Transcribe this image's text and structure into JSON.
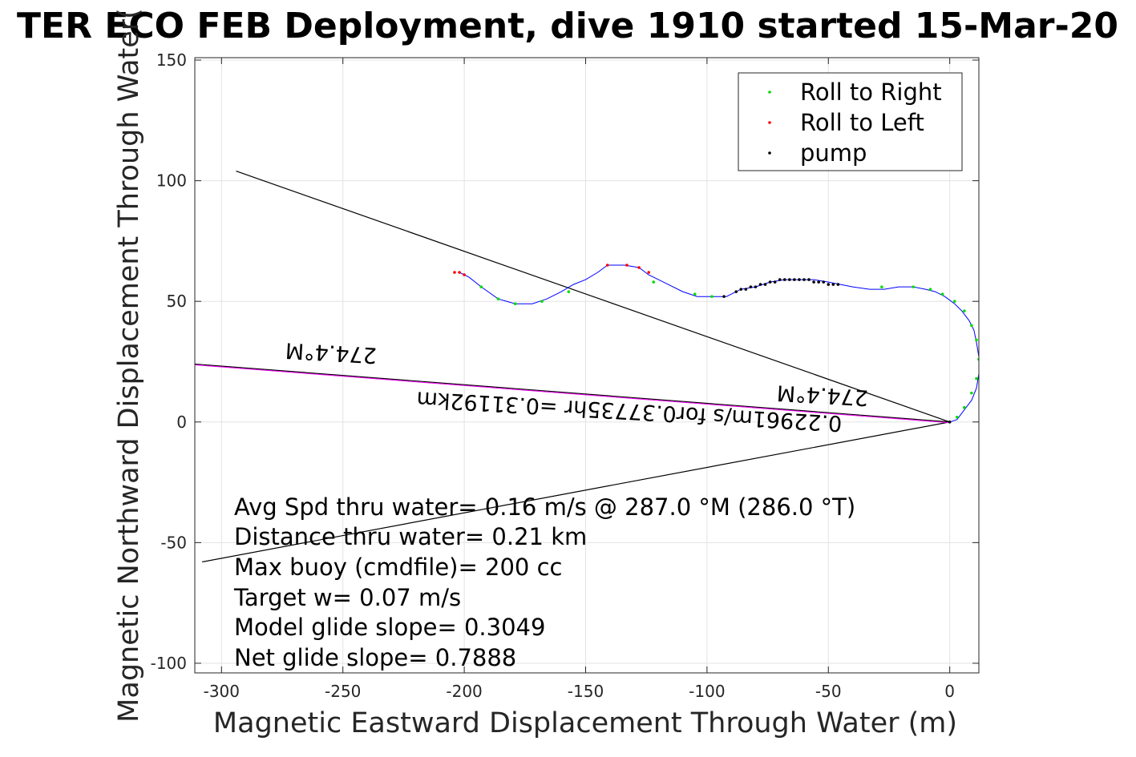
{
  "chart_data": {
    "type": "scatter",
    "title": "TER ECO FEB Deployment, dive 1910 started 15-Mar-20",
    "xlabel": "Magnetic Eastward Displacement Through Water (m)",
    "ylabel": "Magnetic Northward Displacement Through Water(",
    "xlim": [
      -311,
      12
    ],
    "ylim": [
      -104,
      151
    ],
    "xticks": [
      -300,
      -250,
      -200,
      -150,
      -100,
      -50,
      0
    ],
    "yticks": [
      -100,
      -50,
      0,
      50,
      100,
      150
    ],
    "grid": true,
    "legend_position": "top-right",
    "colors": {
      "track": "#0000ff",
      "roll_right": "#00dd00",
      "roll_left": "#ff0000",
      "pump": "#000000",
      "heading_line": "#ff00ff",
      "reference_lines": "#000000"
    },
    "series": [
      {
        "name": "Roll to Right",
        "color": "#00dd00",
        "x": [
          -193,
          -186,
          -179,
          -168,
          -157,
          -122,
          -105,
          -98,
          -28,
          -15,
          -8,
          -3,
          2,
          6,
          9,
          11,
          12,
          11,
          9,
          6,
          3
        ],
        "y": [
          56,
          51,
          49,
          50,
          54,
          58,
          53,
          52,
          56,
          56,
          55,
          53,
          50,
          46,
          40,
          34,
          26,
          18,
          12,
          6,
          2
        ]
      },
      {
        "name": "Roll to Left",
        "color": "#ff0000",
        "x": [
          -204,
          -202,
          -200,
          -141,
          -133,
          -128,
          -124
        ],
        "y": [
          62,
          62,
          61,
          65,
          65,
          64,
          62
        ]
      },
      {
        "name": "pump",
        "color": "#000000",
        "x": [
          -93,
          -88,
          -86,
          -84,
          -82,
          -80,
          -78,
          -76,
          -74,
          -72,
          -70,
          -68,
          -66,
          -64,
          -62,
          -60,
          -58,
          -56,
          -54,
          -52,
          -50,
          -48,
          -46,
          0
        ],
        "y": [
          52,
          54,
          55,
          55,
          56,
          56,
          57,
          57,
          58,
          58,
          59,
          59,
          59,
          59,
          59,
          59,
          59,
          58,
          58,
          58,
          57,
          57,
          57,
          0
        ]
      }
    ],
    "track": {
      "x": [
        -202,
        -198,
        -193,
        -186,
        -179,
        -172,
        -166,
        -160,
        -155,
        -150,
        -145,
        -141,
        -134,
        -128,
        -124,
        -118,
        -110,
        -104,
        -98,
        -92,
        -86,
        -80,
        -74,
        -68,
        -62,
        -56,
        -50,
        -45,
        -40,
        -33,
        -27,
        -21,
        -15,
        -10,
        -6,
        -2,
        2,
        5,
        8,
        10,
        11,
        12,
        12,
        11,
        9,
        6,
        3,
        0
      ],
      "y": [
        62,
        60,
        56,
        51,
        49,
        49,
        51,
        54,
        57,
        59,
        62,
        65,
        65,
        64,
        61,
        58,
        54,
        52,
        52,
        52,
        55,
        56,
        58,
        59,
        59,
        59,
        58,
        57,
        56,
        55,
        55,
        56,
        56,
        55,
        54,
        52,
        49,
        46,
        42,
        38,
        33,
        27,
        20,
        14,
        9,
        5,
        1,
        0
      ]
    },
    "reference_lines": [
      {
        "x": [
          0,
          -294
        ],
        "y": [
          0,
          104
        ]
      },
      {
        "x": [
          0,
          -308
        ],
        "y": [
          0,
          -58
        ]
      },
      {
        "x": [
          0,
          -311
        ],
        "y": [
          0,
          24
        ]
      }
    ],
    "annotations": {
      "heading_label_1": "274.4°M",
      "heading_label_2": "274.4°M",
      "speed_label": "0.22961m/s for0.37735hr =0.31192km",
      "stats": [
        "Avg Spd thru water=  0.16 m/s @ 287.0 °M (286.0 °T)",
        "Distance thru water=  0.21 km",
        "Max buoy (cmdfile)= 200 cc",
        "Target w= 0.07 m/s",
        "Model glide slope= 0.3049",
        "Net glide slope= 0.7888"
      ]
    }
  }
}
